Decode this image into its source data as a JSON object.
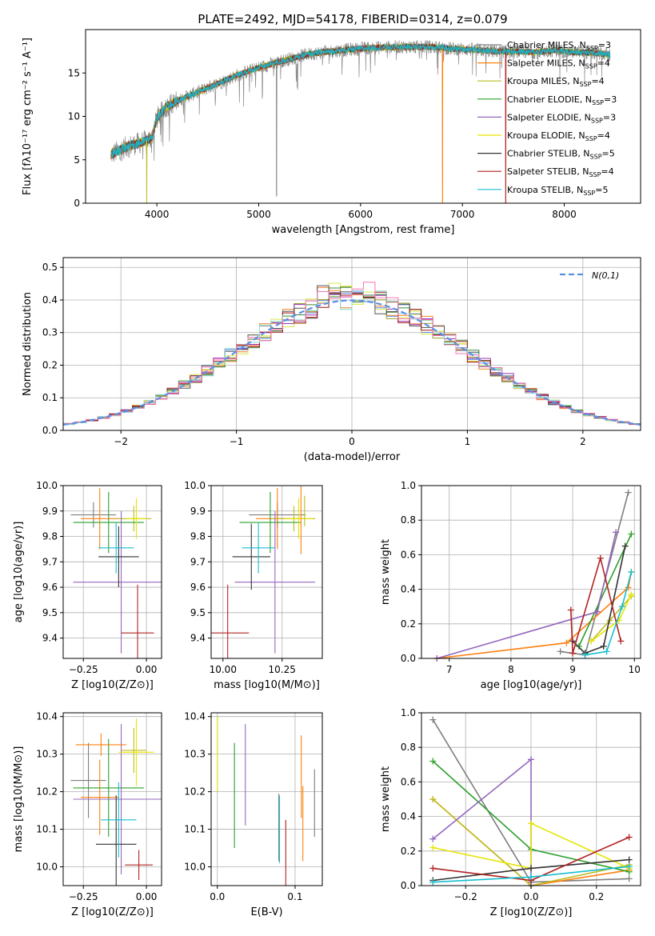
{
  "figure": {
    "title": "PLATE=2492, MJD=54178, FIBERID=0314, z=0.079"
  },
  "models": [
    {
      "name": "Chabrier MILES",
      "nssp": "3",
      "color": "#7f7f7f"
    },
    {
      "name": "Salpeter MILES",
      "nssp": "4",
      "color": "#ff7f0e"
    },
    {
      "name": "Kroupa MILES",
      "nssp": "4",
      "color": "#bcbd22"
    },
    {
      "name": "Chabrier ELODIE",
      "nssp": "3",
      "color": "#2ca02c"
    },
    {
      "name": "Salpeter ELODIE",
      "nssp": "3",
      "color": "#9467bd"
    },
    {
      "name": "Kroupa ELODIE",
      "nssp": "4",
      "color": "#e5e500"
    },
    {
      "name": "Chabrier STELIB",
      "nssp": "5",
      "color": "#333333"
    },
    {
      "name": "Salpeter STELIB",
      "nssp": "4",
      "color": "#b22222"
    },
    {
      "name": "Kroupa STELIB",
      "nssp": "5",
      "color": "#17becf"
    }
  ],
  "chart_data": [
    {
      "id": "spectrum",
      "type": "line",
      "title": "PLATE=2492, MJD=54178, FIBERID=0314, z=0.079",
      "xlabel": "wavelength [Angstrom, rest frame]",
      "ylabel": "Flux [fλ10⁻¹⁷ erg cm⁻² s⁻¹ A⁻¹]",
      "xlim": [
        3300,
        8750
      ],
      "ylim": [
        0,
        20
      ],
      "xticks": [
        4000,
        5000,
        6000,
        7000,
        8000
      ],
      "yticks": [
        0,
        5,
        10,
        15
      ],
      "continuum": {
        "x": [
          3550,
          3700,
          3850,
          3950,
          4000,
          4100,
          4300,
          4500,
          4800,
          5000,
          5200,
          5500,
          5800,
          6100,
          6400,
          6700,
          6900,
          7100,
          7300,
          7500,
          7700,
          7900,
          8100,
          8300,
          8450
        ],
        "y": [
          5.6,
          6.5,
          7.0,
          7.5,
          9.8,
          11.2,
          12.3,
          13.3,
          14.8,
          15.6,
          16.3,
          17.2,
          17.6,
          17.9,
          18.0,
          18.0,
          17.8,
          17.7,
          17.5,
          17.5,
          17.4,
          17.6,
          17.4,
          17.3,
          17.1
        ]
      },
      "features": [
        {
          "model": "Kroupa MILES",
          "x": 3900,
          "y": 0
        },
        {
          "model": "Chabrier MILES",
          "x": 5175,
          "y": 0.8
        },
        {
          "model": "Salpeter MILES",
          "x": 6805,
          "y": 0
        },
        {
          "model": "Salpeter STELIB",
          "x": 7425,
          "y": 0
        }
      ],
      "legend_position": "right"
    },
    {
      "id": "residuals",
      "type": "step-histogram",
      "xlabel": "(data-model)/error",
      "ylabel": "Normed distribution",
      "xlim": [
        -2.5,
        2.5
      ],
      "ylim": [
        0,
        0.53
      ],
      "xticks": [
        -2,
        -1,
        0,
        1,
        2
      ],
      "yticks": [
        0.0,
        0.1,
        0.2,
        0.3,
        0.4,
        0.5
      ],
      "bin_width": 0.1,
      "bin_start": -2.5,
      "reference": {
        "name": "N(0,1)",
        "style": "dashed",
        "color": "#5b8ee6",
        "mean": 0,
        "sigma": 1
      },
      "legend_position": "upper right"
    },
    {
      "id": "age-vs-Z",
      "type": "errorbar",
      "xlabel": "Z [log10(Z/Z⊙)]",
      "ylabel": "age  [log10(age/yr)]",
      "xlim": [
        -0.33,
        0.06
      ],
      "ylim": [
        9.32,
        10.0
      ],
      "xticks": [
        -0.25,
        0.0
      ],
      "yticks": [
        9.4,
        9.5,
        9.6,
        9.7,
        9.8,
        9.9,
        10.0
      ],
      "points": [
        {
          "model": "Chabrier MILES",
          "x": -0.21,
          "y": 9.885,
          "xerr": 0.09,
          "yerr": 0.05
        },
        {
          "model": "Salpeter MILES",
          "x": -0.185,
          "y": 9.87,
          "xerr": 0.075,
          "yerr": 0.12
        },
        {
          "model": "Kroupa MILES",
          "x": -0.05,
          "y": 9.87,
          "xerr": 0.07,
          "yerr": 0.05
        },
        {
          "model": "Chabrier ELODIE",
          "x": -0.15,
          "y": 9.855,
          "xerr": 0.14,
          "yerr": 0.12
        },
        {
          "model": "Salpeter ELODIE",
          "x": -0.1,
          "y": 9.62,
          "xerr": 0.19,
          "yerr": 0.28
        },
        {
          "model": "Kroupa ELODIE",
          "x": -0.04,
          "y": 9.87,
          "xerr": 0.04,
          "yerr": 0.08
        },
        {
          "model": "Chabrier STELIB",
          "x": -0.11,
          "y": 9.72,
          "xerr": 0.08,
          "yerr": 0.12
        },
        {
          "model": "Salpeter STELIB",
          "x": -0.035,
          "y": 9.42,
          "xerr": 0.065,
          "yerr": 0.19
        },
        {
          "model": "Kroupa STELIB",
          "x": -0.12,
          "y": 9.755,
          "xerr": 0.07,
          "yerr": 0.1
        }
      ]
    },
    {
      "id": "age-vs-mass",
      "type": "errorbar",
      "xlabel": "mass [log10(M/M⊙)]",
      "ylabel": "",
      "xlim": [
        9.95,
        10.42
      ],
      "ylim": [
        9.32,
        10.0
      ],
      "xticks": [
        10.0,
        10.25
      ],
      "yticks": [
        9.4,
        9.5,
        9.6,
        9.7,
        9.8,
        9.9,
        10.0
      ],
      "points": [
        {
          "model": "Chabrier MILES",
          "x": 10.23,
          "y": 9.885,
          "xerr": 0.12,
          "yerr": 0.05
        },
        {
          "model": "Salpeter MILES",
          "x": 10.23,
          "y": 9.87,
          "xerr": 0.09,
          "yerr": 0.12
        },
        {
          "model": "Kroupa MILES",
          "x": 10.3,
          "y": 9.87,
          "xerr": 0.09,
          "yerr": 0.05
        },
        {
          "model": "Chabrier ELODIE",
          "x": 10.2,
          "y": 9.855,
          "xerr": 0.13,
          "yerr": 0.12
        },
        {
          "model": "Salpeter ELODIE",
          "x": 10.22,
          "y": 9.62,
          "xerr": 0.17,
          "yerr": 0.28
        },
        {
          "model": "Kroupa ELODIE",
          "x": 10.32,
          "y": 9.87,
          "xerr": 0.06,
          "yerr": 0.08
        },
        {
          "model": "Chabrier STELIB",
          "x": 10.12,
          "y": 9.72,
          "xerr": 0.08,
          "yerr": 0.13
        },
        {
          "model": "Salpeter STELIB",
          "x": 10.02,
          "y": 9.42,
          "xerr": 0.09,
          "yerr": 0.19
        },
        {
          "model": "Kroupa STELIB",
          "x": 10.15,
          "y": 9.755,
          "xerr": 0.07,
          "yerr": 0.1
        },
        {
          "model": "Salpeter MILES",
          "x": 10.33,
          "y": 9.88,
          "xerr": 0.0,
          "yerr": 0.15
        },
        {
          "model": "Kroupa MILES",
          "x": 10.345,
          "y": 9.9,
          "xerr": 0.0,
          "yerr": 0.06
        }
      ]
    },
    {
      "id": "weight-vs-age",
      "type": "line",
      "xlabel": "age  [log10(age/yr)]",
      "ylabel": "mass weight",
      "xlim": [
        6.55,
        10.1
      ],
      "ylim": [
        0,
        1.0
      ],
      "xticks": [
        7,
        8,
        9,
        10
      ],
      "yticks": [
        0.0,
        0.2,
        0.4,
        0.6,
        0.8,
        1.0
      ],
      "series": [
        {
          "model": "Chabrier MILES",
          "x": [
            8.8,
            9.2,
            9.9
          ],
          "y": [
            0.04,
            0.02,
            0.96
          ]
        },
        {
          "model": "Salpeter MILES",
          "x": [
            6.8,
            8.9,
            9.9,
            9.95
          ],
          "y": [
            0.0,
            0.09,
            0.41,
            0.5
          ]
        },
        {
          "model": "Kroupa MILES",
          "x": [
            9.3,
            9.6,
            9.95
          ],
          "y": [
            0.1,
            0.22,
            0.36
          ]
        },
        {
          "model": "Chabrier ELODIE",
          "x": [
            9.1,
            9.95
          ],
          "y": [
            0.07,
            0.72
          ]
        },
        {
          "model": "Salpeter ELODIE",
          "x": [
            6.8,
            9.4,
            9.7
          ],
          "y": [
            0.0,
            0.27,
            0.73
          ]
        },
        {
          "model": "Kroupa ELODIE",
          "x": [
            9.3,
            9.75,
            9.95
          ],
          "y": [
            0.1,
            0.22,
            0.37
          ]
        },
        {
          "model": "Chabrier STELIB",
          "x": [
            9.0,
            9.2,
            9.5,
            9.85
          ],
          "y": [
            0.1,
            0.03,
            0.07,
            0.65
          ]
        },
        {
          "model": "Salpeter STELIB",
          "x": [
            8.97,
            9.0,
            9.45,
            9.78
          ],
          "y": [
            0.28,
            0.03,
            0.58,
            0.1
          ]
        },
        {
          "model": "Kroupa STELIB",
          "x": [
            9.2,
            9.55,
            9.8,
            9.95
          ],
          "y": [
            0.02,
            0.04,
            0.3,
            0.5
          ]
        }
      ]
    },
    {
      "id": "mass-vs-Z",
      "type": "errorbar",
      "xlabel": "Z [log10(Z/Z⊙)]",
      "ylabel": "mass [log10(M/M⊙)]",
      "xlim": [
        -0.33,
        0.06
      ],
      "ylim": [
        9.95,
        10.41
      ],
      "xticks": [
        -0.25,
        0.0
      ],
      "yticks": [
        10.0,
        10.1,
        10.2,
        10.3,
        10.4
      ],
      "points": [
        {
          "model": "Chabrier MILES",
          "x": -0.23,
          "y": 10.23,
          "xerr": 0.07,
          "yerr": 0.1
        },
        {
          "model": "Salpeter MILES",
          "x": -0.185,
          "y": 10.185,
          "xerr": 0.075,
          "yerr": 0.1
        },
        {
          "model": "Kroupa MILES",
          "x": -0.05,
          "y": 10.31,
          "xerr": 0.05,
          "yerr": 0.06
        },
        {
          "model": "Chabrier ELODIE",
          "x": -0.15,
          "y": 10.21,
          "xerr": 0.14,
          "yerr": 0.13
        },
        {
          "model": "Salpeter ELODIE",
          "x": -0.1,
          "y": 10.18,
          "xerr": 0.19,
          "yerr": 0.2
        },
        {
          "model": "Kroupa ELODIE",
          "x": -0.04,
          "y": 10.305,
          "xerr": 0.07,
          "yerr": 0.09
        },
        {
          "model": "Chabrier STELIB",
          "x": -0.12,
          "y": 10.06,
          "xerr": 0.08,
          "yerr": 0.13
        },
        {
          "model": "Salpeter STELIB",
          "x": -0.03,
          "y": 10.005,
          "xerr": 0.055,
          "yerr": 0.04
        },
        {
          "model": "Kroupa STELIB",
          "x": -0.11,
          "y": 10.125,
          "xerr": 0.07,
          "yerr": 0.1
        },
        {
          "model": "Salpeter MILES",
          "x": -0.18,
          "y": 10.325,
          "xerr": 0.1,
          "yerr": 0.03
        }
      ]
    },
    {
      "id": "mass-vs-ebv",
      "type": "errorbar",
      "xlabel": "E(B-V)",
      "ylabel": "",
      "xlim": [
        -0.008,
        0.135
      ],
      "ylim": [
        9.95,
        10.41
      ],
      "xticks": [
        0.0,
        0.1
      ],
      "yticks": [
        10.0,
        10.1,
        10.2,
        10.3,
        10.4
      ],
      "points": [
        {
          "model": "Kroupa ELODIE",
          "x": 0.0,
          "y": 10.3,
          "xerr": 0,
          "yerr": 0.1
        },
        {
          "model": "Chabrier ELODIE",
          "x": 0.022,
          "y": 10.19,
          "xerr": 0,
          "yerr": 0.14
        },
        {
          "model": "Salpeter ELODIE",
          "x": 0.036,
          "y": 10.245,
          "xerr": 0,
          "yerr": 0.135
        },
        {
          "model": "Chabrier MILES",
          "x": 0.079,
          "y": 10.105,
          "xerr": 0,
          "yerr": 0.09
        },
        {
          "model": "Kroupa STELIB",
          "x": 0.08,
          "y": 10.1,
          "xerr": 0,
          "yerr": 0.09
        },
        {
          "model": "Salpeter STELIB",
          "x": 0.088,
          "y": 10.035,
          "xerr": 0,
          "yerr": 0.09
        },
        {
          "model": "Salpeter MILES",
          "x": 0.108,
          "y": 10.24,
          "xerr": 0,
          "yerr": 0.11
        },
        {
          "model": "Salpeter MILES",
          "x": 0.11,
          "y": 10.115,
          "xerr": 0,
          "yerr": 0.1
        },
        {
          "model": "Chabrier MILES",
          "x": 0.125,
          "y": 10.17,
          "xerr": 0,
          "yerr": 0.09
        }
      ]
    },
    {
      "id": "weight-vs-Z",
      "type": "line",
      "xlabel": "Z [log10(Z/Z⊙)]",
      "ylabel": "mass weight",
      "xlim": [
        -0.335,
        0.335
      ],
      "ylim": [
        0,
        1.0
      ],
      "xticks": [
        -0.2,
        0.0,
        0.2
      ],
      "yticks": [
        0.0,
        0.2,
        0.4,
        0.6,
        0.8,
        1.0
      ],
      "series": [
        {
          "model": "Chabrier MILES",
          "x": [
            -0.3,
            0.0,
            0.3
          ],
          "y": [
            0.96,
            0.02,
            0.04
          ]
        },
        {
          "model": "Salpeter MILES",
          "x": [
            -0.3,
            0.0,
            0.3
          ],
          "y": [
            0.5,
            0.0,
            0.09
          ]
        },
        {
          "model": "Kroupa MILES",
          "x": [
            -0.3,
            0.0,
            0.3
          ],
          "y": [
            0.5,
            0.0,
            0.12
          ]
        },
        {
          "model": "Chabrier ELODIE",
          "x": [
            -0.3,
            0.0,
            0.3
          ],
          "y": [
            0.72,
            0.21,
            0.08
          ]
        },
        {
          "model": "Salpeter ELODIE",
          "x": [
            -0.3,
            0.0,
            0.0
          ],
          "y": [
            0.27,
            0.73,
            0.0
          ]
        },
        {
          "model": "Kroupa ELODIE",
          "x": [
            -0.3,
            0.0,
            0.0,
            0.3
          ],
          "y": [
            0.22,
            0.1,
            0.36,
            0.1
          ]
        },
        {
          "model": "Chabrier STELIB",
          "x": [
            -0.3,
            0.0,
            0.3
          ],
          "y": [
            0.03,
            0.1,
            0.15
          ]
        },
        {
          "model": "Salpeter STELIB",
          "x": [
            -0.3,
            0.0,
            0.3
          ],
          "y": [
            0.1,
            0.03,
            0.28
          ]
        },
        {
          "model": "Kroupa STELIB",
          "x": [
            -0.3,
            0.0,
            0.3
          ],
          "y": [
            0.02,
            0.05,
            0.11
          ]
        }
      ]
    }
  ]
}
